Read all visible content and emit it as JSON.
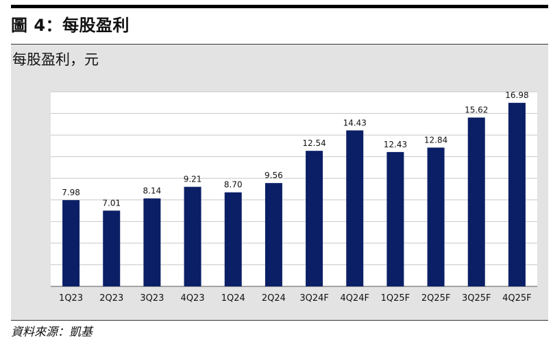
{
  "figure": {
    "title": "圖 4：每股盈利",
    "source": "資料來源：凱基"
  },
  "chart_data": {
    "type": "bar",
    "title": "每股盈利，元",
    "xlabel": "",
    "ylabel": "",
    "categories": [
      "1Q23",
      "2Q23",
      "3Q23",
      "4Q23",
      "1Q24",
      "2Q24",
      "3Q24F",
      "4Q24F",
      "1Q25F",
      "2Q25F",
      "3Q25F",
      "4Q25F"
    ],
    "values": [
      7.98,
      7.01,
      8.14,
      9.21,
      8.7,
      9.56,
      12.54,
      14.43,
      12.43,
      12.84,
      15.62,
      16.98
    ],
    "value_labels": [
      "7.98",
      "7.01",
      "8.14",
      "9.21",
      "8.70",
      "9.56",
      "12.54",
      "14.43",
      "12.43",
      "12.84",
      "15.62",
      "16.98"
    ],
    "ylim": [
      0,
      18
    ],
    "yticks": [
      "0.0",
      "2.0",
      "4.0",
      "6.0",
      "8.0",
      "10.0",
      "12.0",
      "14.0",
      "16.0",
      "18.0"
    ],
    "grid": true,
    "legend": "none",
    "bar_color": "#0b1f66",
    "plot_background": "#ffffff",
    "panel_background": "#e3e3e3"
  }
}
